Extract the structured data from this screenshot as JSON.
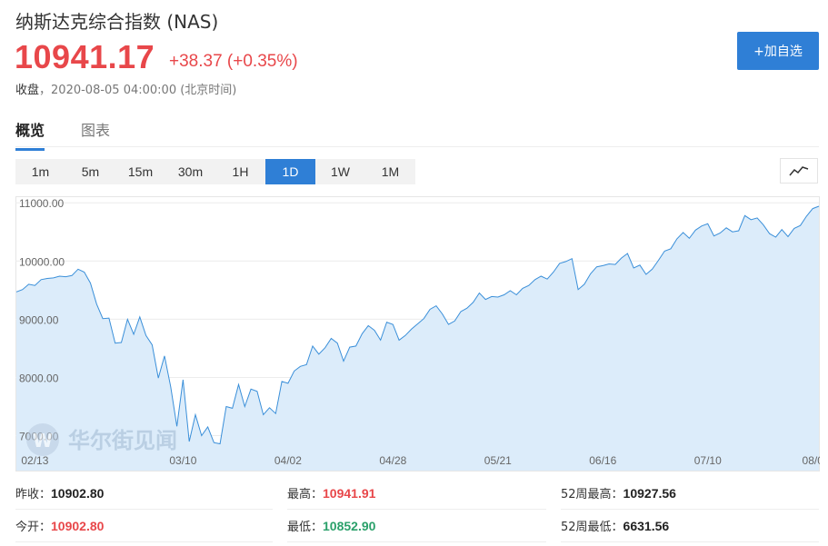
{
  "header": {
    "title": "纳斯达克综合指数 (NAS)",
    "price": "10941.17",
    "change": "+38.37 (+0.35%)",
    "status_label": "收盘",
    "status_time": "2020-08-05 04:00:00 (北京时间)",
    "add_button": "+加自选"
  },
  "tabs": [
    {
      "label": "概览",
      "active": true
    },
    {
      "label": "图表",
      "active": false
    }
  ],
  "ranges": [
    "1m",
    "5m",
    "15m",
    "30m",
    "1H",
    "1D",
    "1W",
    "1M"
  ],
  "active_range": "1D",
  "watermark": "华尔街见闻",
  "colors": {
    "accent": "#2f7fd6",
    "up": "#e8474a",
    "down": "#2aa06a",
    "line": "#3a8fd9",
    "fill": "#dcecfa"
  },
  "chart_data": {
    "type": "area",
    "y_ticks": [
      "11000.00",
      "10000.00",
      "9000.00",
      "8000.00",
      "7000.00"
    ],
    "ylim": [
      6400,
      11050
    ],
    "x_ticks": [
      "02/13",
      "03/10",
      "04/02",
      "04/28",
      "05/21",
      "06/16",
      "07/10",
      "08/0"
    ],
    "x_tick_index": [
      3,
      27,
      44,
      61,
      78,
      95,
      112,
      129
    ],
    "values": [
      9470,
      9510,
      9600,
      9580,
      9680,
      9700,
      9710,
      9740,
      9730,
      9750,
      9860,
      9810,
      9620,
      9260,
      9010,
      9020,
      8590,
      8600,
      9000,
      8740,
      9040,
      8720,
      8560,
      7990,
      8370,
      7840,
      7160,
      7960,
      6900,
      7360,
      7000,
      7150,
      6880,
      6860,
      7500,
      7470,
      7880,
      7500,
      7800,
      7760,
      7360,
      7480,
      7380,
      7930,
      7900,
      8110,
      8190,
      8220,
      8540,
      8400,
      8510,
      8670,
      8590,
      8280,
      8520,
      8540,
      8750,
      8890,
      8810,
      8640,
      8950,
      8910,
      8640,
      8720,
      8830,
      8920,
      9010,
      9170,
      9230,
      9090,
      8910,
      8970,
      9130,
      9190,
      9290,
      9450,
      9340,
      9390,
      9380,
      9420,
      9490,
      9420,
      9530,
      9580,
      9680,
      9740,
      9690,
      9810,
      9960,
      9990,
      10040,
      9510,
      9600,
      9780,
      9900,
      9920,
      9950,
      9940,
      10050,
      10130,
      9880,
      9930,
      9770,
      9860,
      10010,
      10170,
      10210,
      10380,
      10490,
      10390,
      10530,
      10600,
      10640,
      10430,
      10480,
      10570,
      10500,
      10520,
      10780,
      10710,
      10740,
      10620,
      10470,
      10410,
      10540,
      10420,
      10560,
      10610,
      10770,
      10900,
      10941
    ]
  },
  "stats": [
    {
      "label": "昨收：",
      "value": "10902.80",
      "color": "plain"
    },
    {
      "label": "最高：",
      "value": "10941.91",
      "color": "red"
    },
    {
      "label": "52周最高：",
      "value": "10927.56",
      "color": "plain"
    },
    {
      "label": "今开：",
      "value": "10902.80",
      "color": "red"
    },
    {
      "label": "最低：",
      "value": "10852.90",
      "color": "green"
    },
    {
      "label": "52周最低：",
      "value": "6631.56",
      "color": "plain"
    }
  ]
}
